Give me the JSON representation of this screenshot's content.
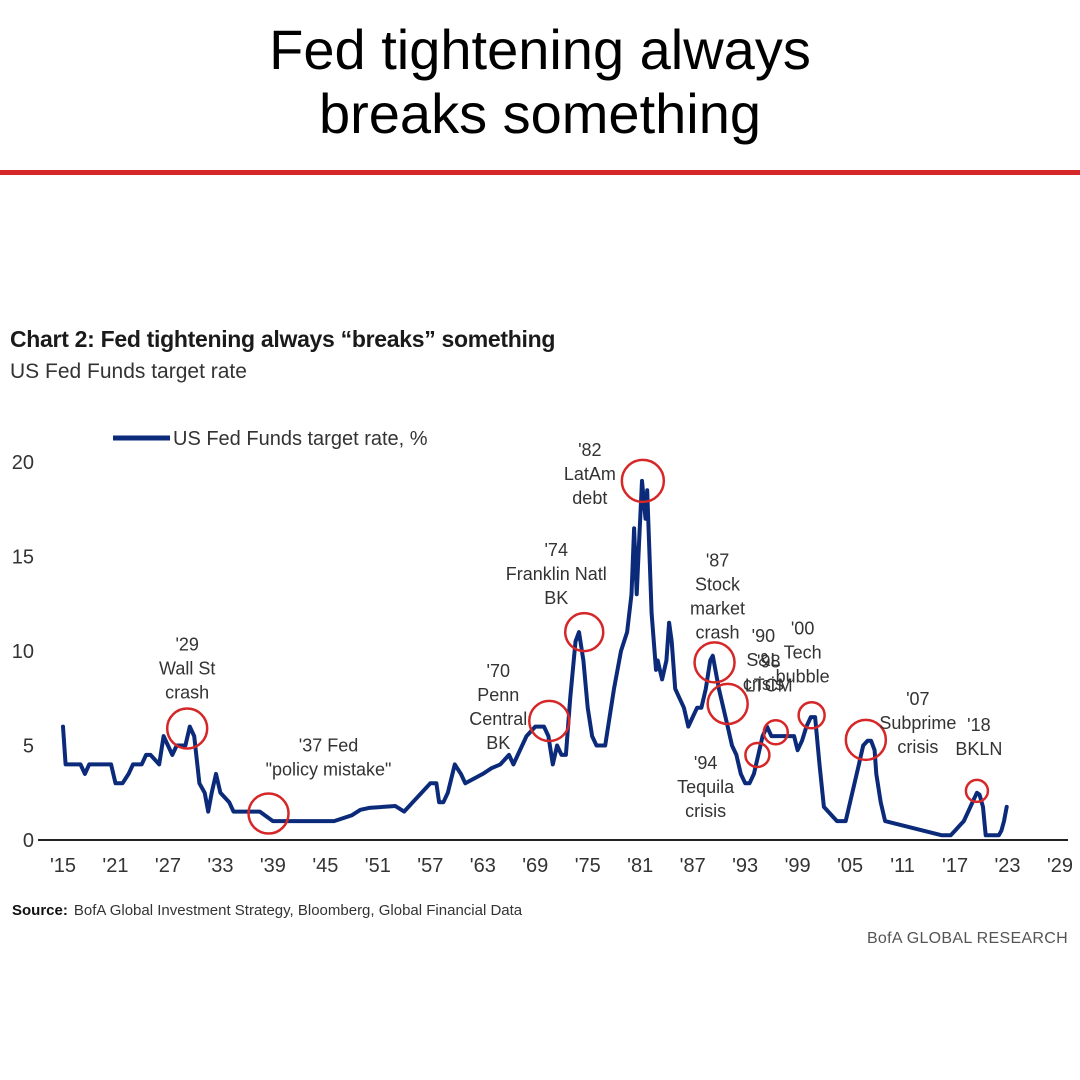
{
  "headline": {
    "line1": "Fed tightening always",
    "line2": "breaks something"
  },
  "colors": {
    "rule": "#d62728",
    "series": "#0b2a7a",
    "circle": "#d62728",
    "axis": "#222222"
  },
  "chart_data": {
    "type": "line",
    "title": "Chart 2: Fed tightening always “breaks” something",
    "subtitle": "US Fed Funds target rate",
    "xlabel": "",
    "ylabel": "",
    "xlim": [
      1915,
      2029
    ],
    "ylim": [
      0,
      20
    ],
    "grid": false,
    "legend_position": "top-left",
    "x_tick_labels": [
      "'15",
      "'21",
      "'27",
      "'33",
      "'39",
      "'45",
      "'51",
      "'57",
      "'63",
      "'69",
      "'75",
      "'81",
      "'87",
      "'93",
      "'99",
      "'05",
      "'11",
      "'17",
      "'23",
      "'29"
    ],
    "x_ticks": [
      1915,
      1921,
      1927,
      1933,
      1939,
      1945,
      1951,
      1957,
      1963,
      1969,
      1975,
      1981,
      1987,
      1993,
      1999,
      2005,
      2011,
      2017,
      2023,
      2029
    ],
    "y_ticks": [
      0,
      5,
      10,
      15,
      20
    ],
    "y_tick_labels": [
      "0",
      "5",
      "10",
      "15",
      "20"
    ],
    "series": [
      {
        "name": "US Fed Funds target rate, %",
        "color": "#0b2a7a",
        "x": [
          1915,
          1915.3,
          1917,
          1917.5,
          1918,
          1919,
          1920.5,
          1921,
          1921.8,
          1922.5,
          1923,
          1924,
          1924.5,
          1925,
          1926,
          1926.5,
          1927.5,
          1928,
          1929,
          1929.5,
          1930,
          1930.6,
          1931.2,
          1931.6,
          1932,
          1932.5,
          1933,
          1934,
          1934.5,
          1935,
          1937,
          1937.5,
          1939,
          1942,
          1943,
          1944,
          1946,
          1948,
          1949,
          1950,
          1953,
          1954,
          1955,
          1956,
          1957,
          1957.7,
          1958,
          1958.5,
          1959,
          1959.8,
          1960.5,
          1961,
          1963,
          1964,
          1965,
          1966,
          1966.5,
          1967,
          1968,
          1969,
          1969.5,
          1970,
          1970.5,
          1971,
          1971.5,
          1972,
          1972.5,
          1973,
          1973.6,
          1974,
          1974.5,
          1975,
          1975.5,
          1976,
          1977,
          1977.5,
          1978,
          1978.8,
          1979.5,
          1980,
          1980.3,
          1980.6,
          1980.9,
          1981.2,
          1981.6,
          1981.8,
          1982.3,
          1982.8,
          1983,
          1983.5,
          1984,
          1984.3,
          1984.6,
          1985,
          1986,
          1986.5,
          1987,
          1987.5,
          1988,
          1988.5,
          1989,
          1989.3,
          1989.6,
          1990,
          1990.5,
          1991,
          1991.5,
          1992,
          1992.5,
          1993,
          1993.5,
          1994,
          1994.5,
          1995,
          1995.5,
          1996,
          1997,
          1998,
          1998.6,
          1999,
          1999.5,
          2000,
          2000.5,
          2001,
          2001.5,
          2002,
          2003,
          2003.5,
          2004,
          2004.5,
          2005,
          2005.5,
          2006,
          2006.5,
          2007,
          2007.4,
          2007.8,
          2008,
          2008.5,
          2009,
          2015.5,
          2016,
          2016.5,
          2017,
          2017.5,
          2018,
          2018.5,
          2019,
          2019.5,
          2019.8,
          2020.2,
          2020.5,
          2021,
          2021.5,
          2022,
          2022.3,
          2022.6,
          2022.9
        ],
        "y": [
          6,
          4,
          4,
          3.5,
          4,
          4,
          4,
          3,
          3,
          3.5,
          4,
          4,
          4.5,
          4.5,
          4,
          5.5,
          4.5,
          5,
          5,
          6,
          5.5,
          3,
          2.5,
          1.5,
          2.5,
          3.5,
          2.5,
          2,
          1.5,
          1.5,
          1.5,
          1.5,
          1,
          1,
          1,
          1,
          1,
          1.3,
          1.6,
          1.7,
          1.8,
          1.5,
          2,
          2.5,
          3,
          3,
          2,
          2,
          2.5,
          4,
          3.5,
          3,
          3.5,
          3.8,
          4,
          4.5,
          4,
          4.5,
          5.5,
          6,
          6,
          6,
          5.5,
          4,
          5,
          4.5,
          4.5,
          7.5,
          10.5,
          11,
          9.5,
          7,
          5.5,
          5,
          5,
          6.5,
          8,
          10,
          11,
          13,
          16.5,
          13,
          16,
          19,
          17,
          18.5,
          12,
          9,
          9.5,
          8.5,
          9.5,
          11.5,
          10.5,
          8,
          7,
          6,
          6.5,
          7,
          7,
          8,
          9.5,
          9.75,
          9,
          8,
          7,
          6,
          5,
          4.5,
          3.5,
          3,
          3,
          3.5,
          4.5,
          5.5,
          6,
          5.5,
          5.5,
          5.5,
          5.5,
          4.75,
          5.25,
          6,
          6.5,
          6.5,
          4,
          1.75,
          1.25,
          1,
          1,
          1,
          2,
          3,
          4,
          5,
          5.25,
          5.25,
          4.75,
          3.5,
          2,
          1,
          0.25,
          0.25,
          0.25,
          0.5,
          0.75,
          1,
          1.5,
          2,
          2.5,
          2.4,
          1.75,
          0.25,
          0.25,
          0.25,
          0.25,
          0.5,
          1,
          1.75
        ]
      }
    ],
    "annotations": [
      {
        "label": [
          "'29",
          "Wall St",
          "crash"
        ],
        "x": 1929.2,
        "y": 5.9
      },
      {
        "label": [
          "'37 Fed",
          "\"policy mistake\""
        ],
        "x": 1938.5,
        "y": 1.4
      },
      {
        "label": [
          "'70",
          "Penn",
          "Central",
          "BK"
        ],
        "x": 1970.6,
        "y": 6.3
      },
      {
        "label": [
          "'74",
          "Franklin Natl",
          "BK"
        ],
        "x": 1974.6,
        "y": 11
      },
      {
        "label": [
          "'82",
          "LatAm",
          "debt"
        ],
        "x": 1981.3,
        "y": 19
      },
      {
        "label": [
          "'87",
          "Stock",
          "market",
          "crash"
        ],
        "x": 1989.5,
        "y": 9.4
      },
      {
        "label": [
          "'94",
          "Tequila",
          "crisis"
        ],
        "x": 1991,
        "y": 7.2
      },
      {
        "label": [
          "'90",
          "S&L",
          "crisis"
        ],
        "x": 1994.4,
        "y": 4.5
      },
      {
        "label": [
          "'98",
          "LTCM"
        ],
        "x": 1996.5,
        "y": 5.7
      },
      {
        "label": [
          "'00",
          "Tech",
          "bubble"
        ],
        "x": 2000.6,
        "y": 6.6
      },
      {
        "label": [
          "'07",
          "Subprime",
          "crisis"
        ],
        "x": 2006.8,
        "y": 5.3
      },
      {
        "label": [
          "'18",
          "BKLN"
        ],
        "x": 2019.5,
        "y": 2.6
      }
    ]
  },
  "source": {
    "label": "Source:",
    "text": "BofA Global Investment Strategy, Bloomberg, Global Financial Data"
  },
  "brand": "BofA GLOBAL RESEARCH"
}
